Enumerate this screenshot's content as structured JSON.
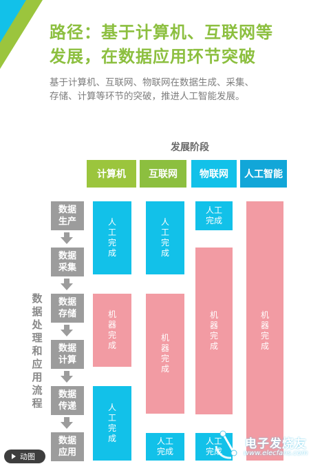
{
  "header": {
    "title_line1": "路径：基于计算机、互联网等",
    "title_line2": "发展，在数据应用环节突破",
    "subtitle_line1": "基于计算机、互联网、物联网在数据生成、采集、",
    "subtitle_line2": "存储、计算等环节的突破，推进人工智能发展。"
  },
  "diagram": {
    "stage_title": "发展阶段",
    "stages": [
      {
        "label": "计算机",
        "color": "#9bc53d"
      },
      {
        "label": "互联网",
        "color": "#8cbf3f"
      },
      {
        "label": "物联网",
        "color": "#12c1e9"
      },
      {
        "label": "人工智能",
        "color": "#12a6d8"
      }
    ],
    "process_title": [
      "数",
      "据",
      "处",
      "理",
      "和",
      "应",
      "用",
      "流",
      "程"
    ],
    "steps": [
      {
        "line1": "数据",
        "line2": "生产"
      },
      {
        "line1": "数据",
        "line2": "采集"
      },
      {
        "line1": "数据",
        "line2": "存储"
      },
      {
        "line1": "数据",
        "line2": "计算"
      },
      {
        "line1": "数据",
        "line2": "传递"
      },
      {
        "line1": "数据",
        "line2": "应用"
      }
    ],
    "human_done": "人工完成",
    "machine_done": "机器完成",
    "human_line1": "人工",
    "human_line2": "完成",
    "colors": {
      "human": "#12c1e9",
      "machine": "#f29ba3",
      "step": "#9c9c9c"
    }
  },
  "badge": {
    "label": "动图"
  },
  "watermark": {
    "name": "电子发烧友",
    "url": "www.elecfans.com"
  }
}
